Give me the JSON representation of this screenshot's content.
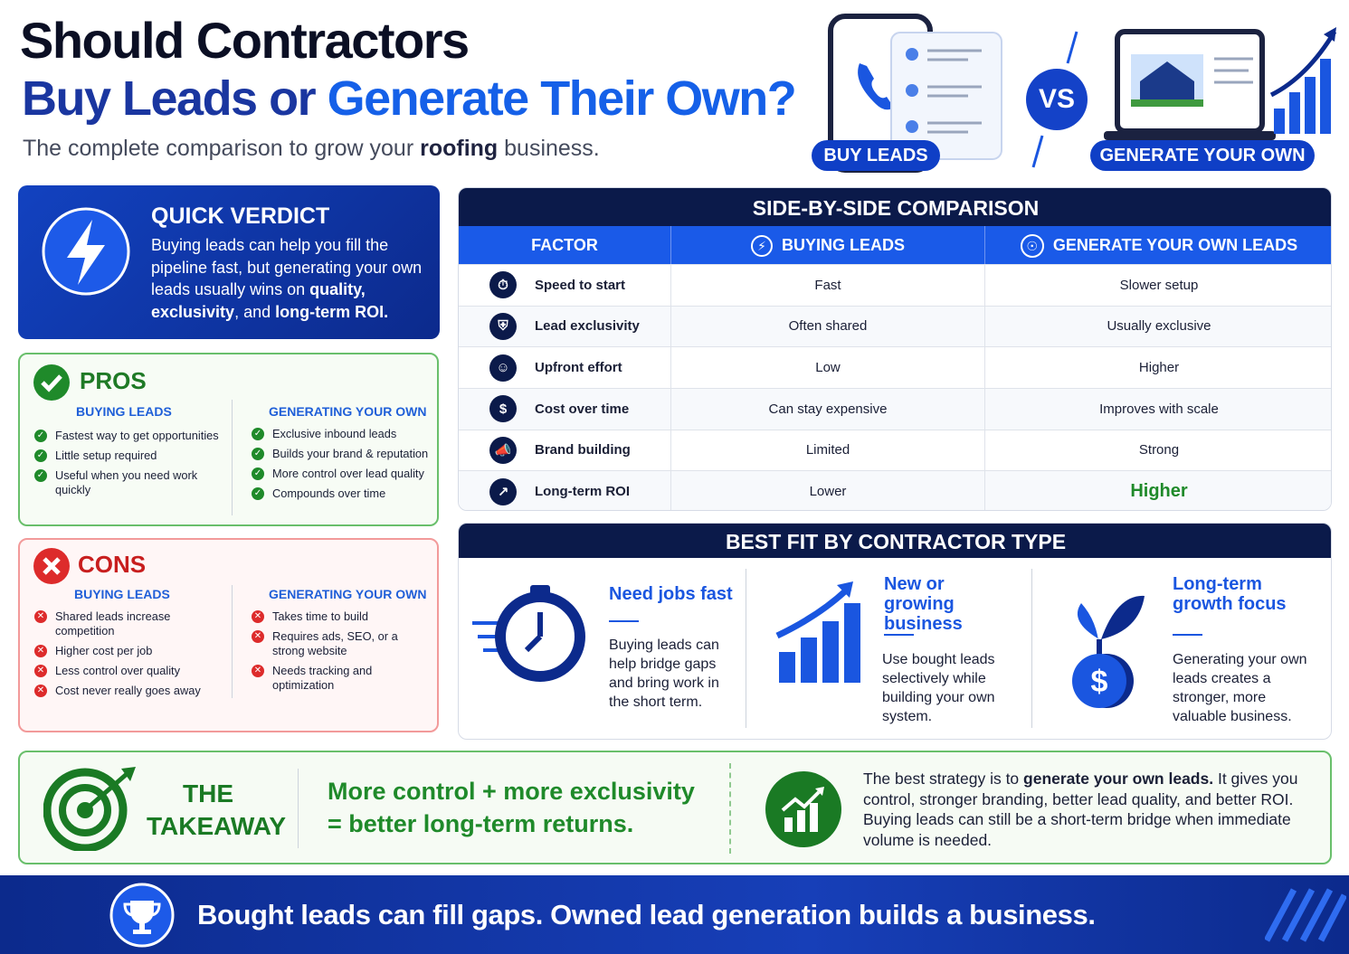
{
  "header": {
    "title_line1": "Should Contractors",
    "title_line2": [
      "Buy Leads or ",
      {
        "text": "Generate Their Own?",
        "strong": true
      }
    ],
    "subtitle": [
      "The complete comparison to grow your ",
      {
        "text": "roofing",
        "strong": true
      },
      " business."
    ]
  },
  "hero": {
    "buy_label": "BUY LEADS",
    "vs": "VS",
    "generate_label": "GENERATE YOUR OWN"
  },
  "quick_verdict": {
    "title": "QUICK VERDICT",
    "text": [
      "Buying leads can help you fill the pipeline fast, but generating your own leads usually wins on ",
      {
        "text": "quality,",
        "strong": true
      },
      {
        "text": " exclusivity",
        "strong": true
      },
      ", and ",
      {
        "text": "long-term ROI.",
        "strong": true
      }
    ]
  },
  "pros": {
    "title": "PROS",
    "buying": {
      "heading": "BUYING LEADS",
      "items": [
        "Fastest way to get opportunities",
        "Little setup required",
        "Useful when you need work quickly"
      ]
    },
    "generating": {
      "heading": "GENERATING YOUR OWN",
      "items": [
        "Exclusive inbound leads",
        "Builds your brand & reputation",
        "More control over lead quality",
        "Compounds over time"
      ]
    }
  },
  "cons": {
    "title": "CONS",
    "buying": {
      "heading": "BUYING LEADS",
      "items": [
        "Shared leads increase competition",
        "Higher cost per job",
        "Less control over quality",
        "Cost never really goes away"
      ]
    },
    "generating": {
      "heading": "GENERATING YOUR OWN",
      "items": [
        "Takes time to build",
        "Requires ads, SEO, or a strong website",
        "Needs tracking and optimization"
      ]
    }
  },
  "comparison": {
    "title": "SIDE-BY-SIDE COMPARISON",
    "headers": [
      "FACTOR",
      "BUYING LEADS",
      "GENERATE YOUR OWN LEADS"
    ],
    "rows": [
      [
        "Speed to start",
        "Fast",
        "Slower setup"
      ],
      [
        "Lead exclusivity",
        "Often shared",
        "Usually exclusive"
      ],
      [
        "Upfront effort",
        "Low",
        "Higher"
      ],
      [
        "Cost over time",
        "Can stay expensive",
        "Improves with scale"
      ],
      [
        "Brand building",
        "Limited",
        "Strong"
      ],
      [
        "Long-term ROI",
        "Lower",
        "Higher"
      ]
    ]
  },
  "best_fit": {
    "title": "BEST FIT BY CONTRACTOR TYPE",
    "items": [
      {
        "title": "Need jobs fast",
        "text": "Buying leads can help bridge gaps and bring work in the short term."
      },
      {
        "title": "New or growing business",
        "text": "Use bought leads selectively while building your own system."
      },
      {
        "title": "Long-term growth focus",
        "text": "Generating your own leads creates a stronger, more valuable business."
      }
    ]
  },
  "takeaway": {
    "label": "THE TAKEAWAY",
    "headline": "More control + more exclusivity = better long-term returns.",
    "text": [
      "The best strategy is to ",
      {
        "text": "generate your own leads.",
        "strong": true
      },
      " It gives you control, stronger branding, better lead quality, and better ROI. Buying leads can still be a short-term bridge when immediate volume is needed."
    ]
  },
  "footer": {
    "text": "Bought leads can fill gaps. Owned lead generation builds a business."
  }
}
